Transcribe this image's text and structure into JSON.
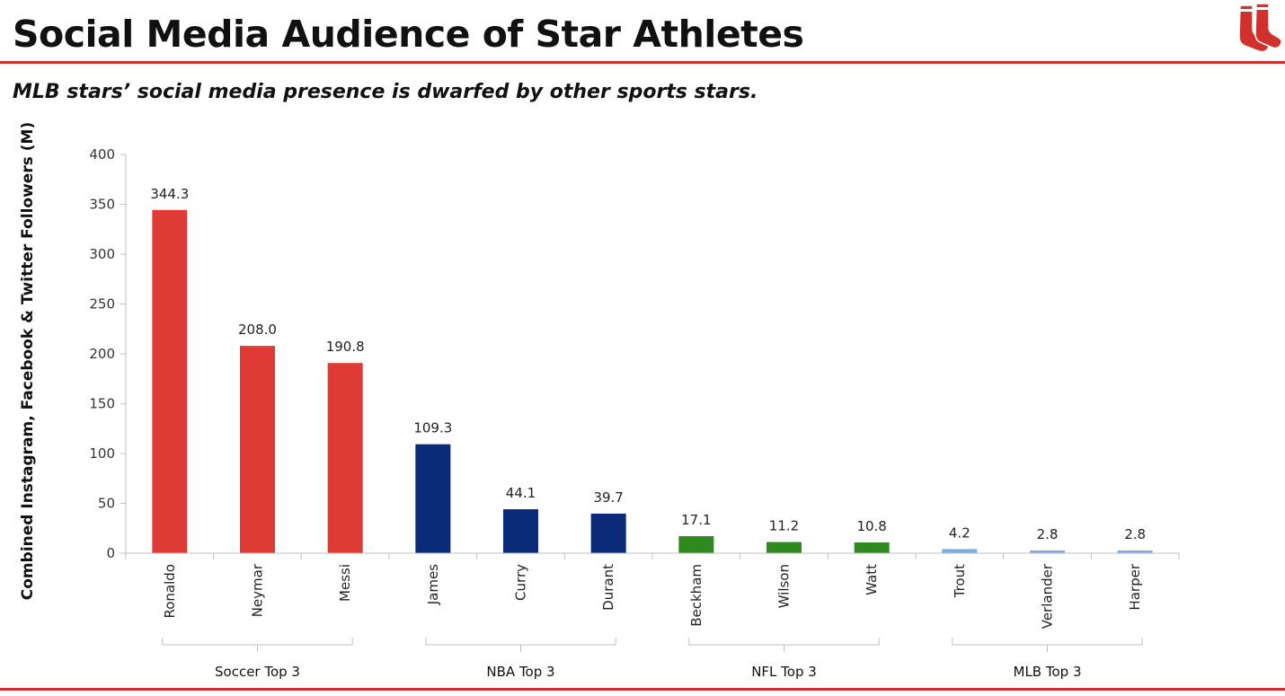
{
  "header": {
    "title": "Social Media Audience of Star Athletes",
    "subtitle": "MLB stars’ social media presence is dwarfed by other sports stars.",
    "logo_icon": "red-sox-logo-icon",
    "accent_color": "#d0312d"
  },
  "chart_data": {
    "type": "bar",
    "title": "",
    "xlabel": "",
    "ylabel": "Combined Instagram, Facebook & Twitter Followers (M)",
    "ylim": [
      0,
      400
    ],
    "yticks": [
      0,
      50,
      100,
      150,
      200,
      250,
      300,
      350,
      400
    ],
    "grid": false,
    "categories": [
      "Ronaldo",
      "Neymar",
      "Messi",
      "James",
      "Curry",
      "Durant",
      "Beckham",
      "Wilson",
      "Watt",
      "Trout",
      "Verlander",
      "Harper"
    ],
    "values": [
      344.3,
      208.0,
      190.8,
      109.3,
      44.1,
      39.7,
      17.1,
      11.2,
      10.8,
      4.2,
      2.8,
      2.8
    ],
    "data_labels": [
      "344.3",
      "208.0",
      "190.8",
      "109.3",
      "44.1",
      "39.7",
      "17.1",
      "11.2",
      "10.8",
      "4.2",
      "2.8",
      "2.8"
    ],
    "groups": [
      {
        "label": "Soccer Top 3",
        "members": [
          0,
          1,
          2
        ],
        "color": "#e03a35"
      },
      {
        "label": "NBA Top 3",
        "members": [
          3,
          4,
          5
        ],
        "color": "#0b2a78"
      },
      {
        "label": "NFL Top 3",
        "members": [
          6,
          7,
          8
        ],
        "color": "#2e8a1e"
      },
      {
        "label": "MLB Top 3",
        "members": [
          9,
          10,
          11
        ],
        "color": "#7eaee0"
      }
    ]
  }
}
